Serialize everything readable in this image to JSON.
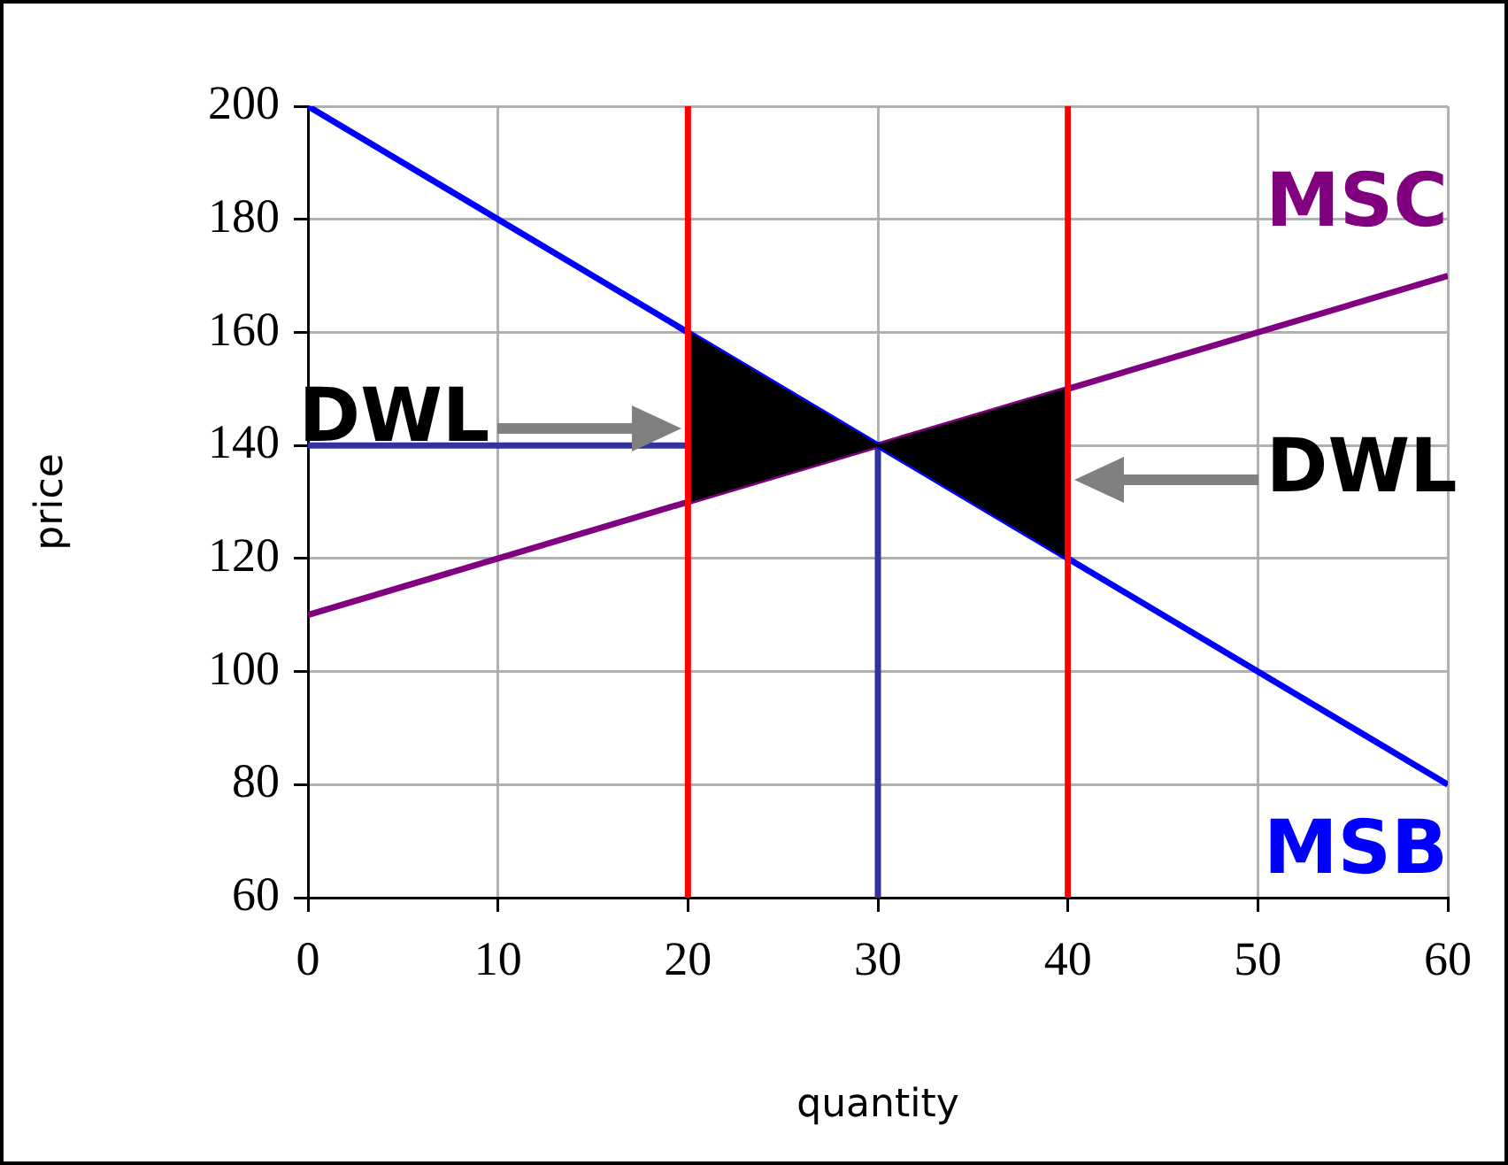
{
  "chart_data": {
    "type": "line",
    "xlabel": "quantity",
    "ylabel": "price",
    "xlim": [
      0,
      60
    ],
    "xticks": [
      0,
      10,
      20,
      30,
      40,
      50,
      60
    ],
    "ylim": [
      60,
      200
    ],
    "yticks": [
      60,
      80,
      100,
      120,
      140,
      160,
      180,
      200
    ],
    "grid": true,
    "legend": false,
    "marker": "none",
    "line_style": "solid",
    "series": [
      {
        "color": "#ff0000",
        "x": [
          20,
          20
        ],
        "values": [
          60,
          200
        ]
      },
      {
        "color": "#ff0000",
        "x": [
          40,
          40
        ],
        "values": [
          60,
          200
        ]
      },
      {
        "type": "area",
        "color": "#000000",
        "x": [
          20,
          30,
          20,
          20
        ],
        "values": [
          160,
          140,
          130,
          160
        ]
      },
      {
        "type": "area",
        "color": "#000000",
        "x": [
          30,
          40,
          40,
          30
        ],
        "values": [
          140,
          150,
          120,
          140
        ]
      },
      {
        "name": "MSB",
        "color": "#0000ff",
        "x": [
          0,
          60
        ],
        "values": [
          200,
          80
        ]
      },
      {
        "name": "MSC",
        "color": "#800080",
        "x": [
          0,
          60
        ],
        "values": [
          110,
          170
        ]
      },
      {
        "color": "#3333a0",
        "x": [
          0,
          30
        ],
        "values": [
          140,
          140
        ]
      },
      {
        "color": "#3333a0",
        "x": [
          30,
          30
        ],
        "values": [
          60,
          140
        ]
      }
    ],
    "annotations": [
      {
        "text": "DWL",
        "x": 20,
        "y": 143
      },
      {
        "text": "DWL",
        "x": 40,
        "y": 134
      }
    ]
  }
}
